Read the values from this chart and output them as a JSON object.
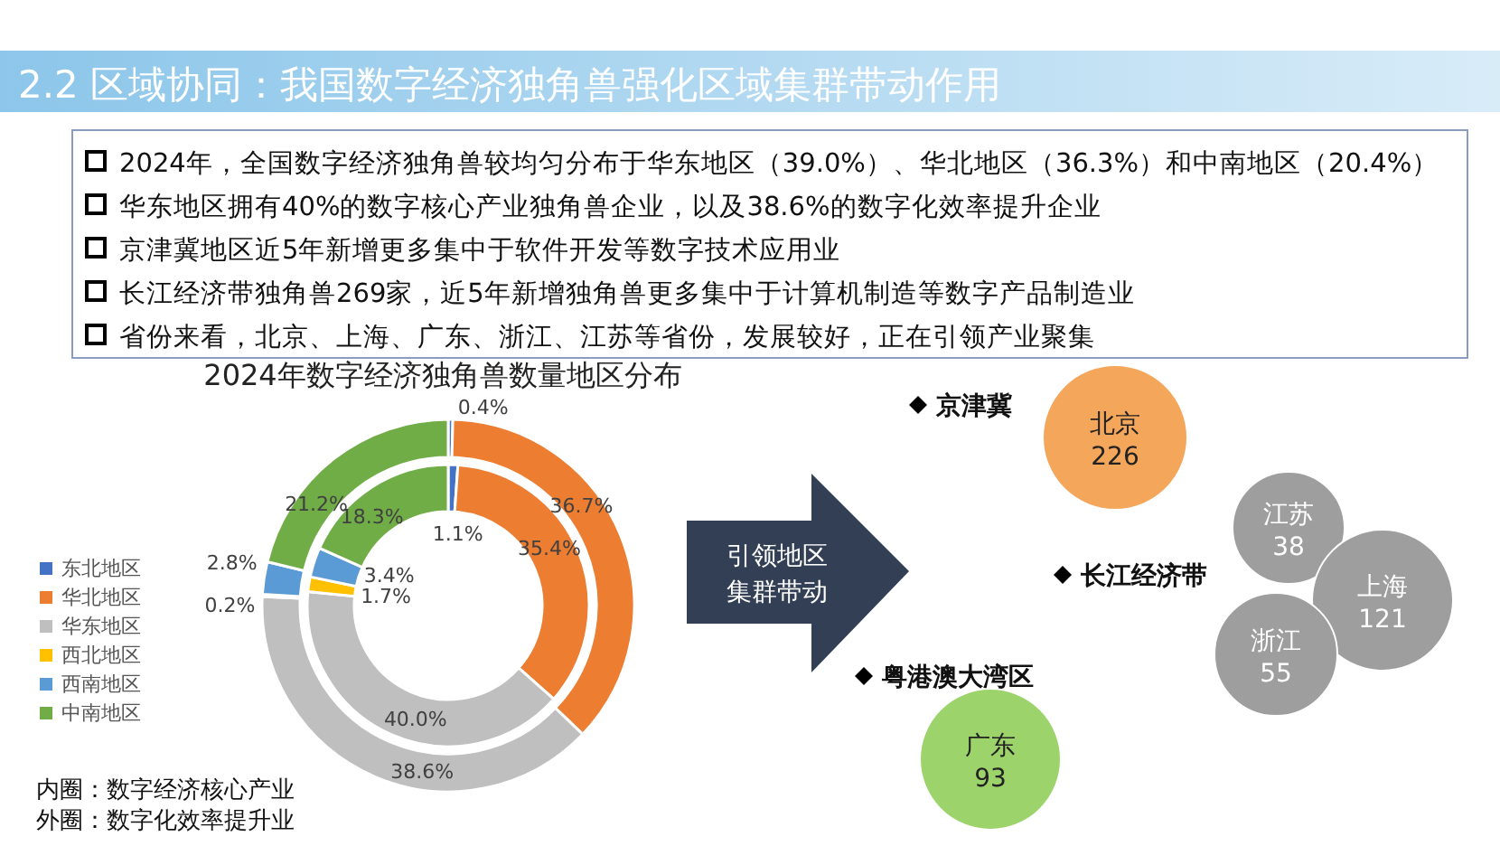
{
  "chart_data": [
    {
      "type": "other",
      "title": "2.2 区域协同：我国数字经济独角兽强化区域集群带动作用",
      "annotations": [
        "2024年，全国数字经济独角兽较均匀分布于华东地区（39.0%）、华北地区（36.3%）和中南地区（20.4%）",
        "华东地区拥有40%的数字核心产业独角兽企业，以及38.6%的数字化效率提升企业",
        "京津冀地区近5年新增更多集中于软件开发等数字技术应用业",
        "长江经济带独角兽269家，近5年新增独角兽更多集中于计算机制造等数字产品制造业",
        "省份来看，北京、上海、广东、浙江、江苏等省份，发展较好，正在引领产业聚集"
      ]
    },
    {
      "type": "donut",
      "title": "2024年数字经济独角兽数量地区分布",
      "categories": [
        "东北地区",
        "华北地区",
        "华东地区",
        "西北地区",
        "西南地区",
        "中南地区"
      ],
      "colors": [
        "#4472c4",
        "#ed7d31",
        "#bfbfbf",
        "#ffc000",
        "#5b9bd5",
        "#70ad47"
      ],
      "legend": "left",
      "series": [
        {
          "values": [
            1.1,
            35.4,
            40.0,
            1.7,
            3.4,
            18.3
          ],
          "value_labels": [
            "1.1%",
            "35.4%",
            "40.0%",
            "1.7%",
            "3.4%",
            "18.3%"
          ]
        },
        {
          "values": [
            0.4,
            36.7,
            38.6,
            0.2,
            2.8,
            21.2
          ],
          "value_labels": [
            "0.4%",
            "36.7%",
            "38.6%",
            "0.2%",
            "2.8%",
            "21.2%"
          ]
        }
      ],
      "annotations": [
        "内圈：数字经济核心产业",
        "外圈：数字化效率提升业"
      ]
    },
    {
      "type": "other",
      "categories": [
        "北京",
        "江苏",
        "上海",
        "浙江",
        "广东"
      ],
      "values": [
        226,
        38,
        121,
        55,
        93
      ],
      "colors": [
        "#f4a65a",
        "#9e9e9e",
        "#9e9e9e",
        "#9e9e9e",
        "#9dd36b"
      ],
      "data_labels": true,
      "annotations": [
        "引领地区集群带动",
        "京津冀",
        "长江经济带",
        "粤港澳大湾区"
      ]
    }
  ]
}
